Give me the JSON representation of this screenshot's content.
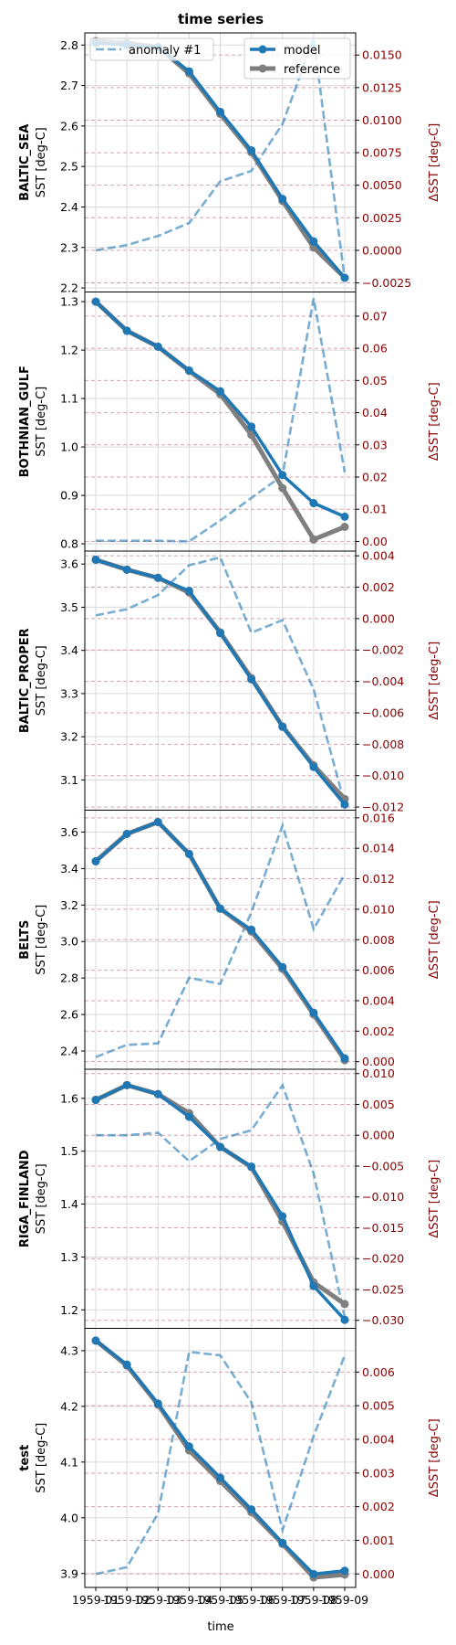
{
  "chart_data": {
    "type": "line",
    "title": "time series",
    "xlabel": "time",
    "x_tick_labels": [
      "1959-01",
      "1959-02",
      "1959-03",
      "1959-04",
      "1959-05",
      "1959-06",
      "1959-07",
      "1959-08",
      "1959-09"
    ],
    "legend": {
      "model": "model",
      "reference": "reference",
      "anomaly": "anomaly #1"
    },
    "colors": {
      "model": "#1f77b4",
      "reference": "#7f7f7f",
      "anomaly": "#1f77b4",
      "right_axis": "#8b0000"
    },
    "panels": [
      {
        "region": "BALTIC_SEA",
        "ylabel": "SST [deg-C]",
        "ylabel_right": "ΔSST [deg-C]",
        "ylim": [
          2.19,
          2.83
        ],
        "ylim_right": [
          -0.0032,
          0.0167
        ],
        "yticks": [
          "2.2",
          "2.3",
          "2.4",
          "2.5",
          "2.6",
          "2.7",
          "2.8"
        ],
        "yticks_right": [
          "−0.0025",
          "0.0000",
          "0.0025",
          "0.0050",
          "0.0075",
          "0.0100",
          "0.0125",
          "0.0150"
        ],
        "model": [
          2.805,
          2.8,
          2.795,
          2.735,
          2.635,
          2.54,
          2.42,
          2.315,
          2.225
        ],
        "reference": [
          2.81,
          2.805,
          2.795,
          2.73,
          2.63,
          2.535,
          2.415,
          2.3,
          2.225
        ],
        "anomaly": [
          0.0,
          0.0004,
          0.0011,
          0.0021,
          0.0053,
          0.0061,
          0.0097,
          0.0163,
          -0.0022
        ]
      },
      {
        "region": "BOTHNIAN_GULF",
        "ylabel": "SST [deg-C]",
        "ylabel_right": "ΔSST [deg-C]",
        "ylim": [
          0.785,
          1.32
        ],
        "ylim_right": [
          -0.003,
          0.0775
        ],
        "yticks": [
          "0.8",
          "0.9",
          "1.0",
          "1.1",
          "1.2",
          "1.3"
        ],
        "yticks_right": [
          "0.00",
          "0.01",
          "0.02",
          "0.03",
          "0.04",
          "0.05",
          "0.06",
          "0.07"
        ],
        "model": [
          1.3,
          1.24,
          1.207,
          1.158,
          1.115,
          1.042,
          0.942,
          0.884,
          0.856
        ],
        "reference": [
          1.3,
          1.24,
          1.207,
          1.157,
          1.109,
          1.025,
          0.915,
          0.809,
          0.835
        ],
        "anomaly": [
          0.0002,
          0.0002,
          0.0002,
          0.0,
          0.0065,
          0.0135,
          0.0205,
          0.0755,
          0.0215
        ]
      },
      {
        "region": "BALTIC_PROPER",
        "ylabel": "SST [deg-C]",
        "ylabel_right": "ΔSST [deg-C]",
        "ylim": [
          3.03,
          3.63
        ],
        "ylim_right": [
          -0.0122,
          0.0043
        ],
        "yticks": [
          "3.1",
          "3.2",
          "3.3",
          "3.4",
          "3.5",
          "3.6"
        ],
        "yticks_right": [
          "−0.012",
          "−0.010",
          "−0.008",
          "−0.006",
          "−0.004",
          "−0.002",
          "0.000",
          "0.002",
          "0.004"
        ],
        "model": [
          3.61,
          3.587,
          3.568,
          3.538,
          3.44,
          3.333,
          3.223,
          3.13,
          3.043
        ],
        "reference": [
          3.61,
          3.587,
          3.568,
          3.534,
          3.442,
          3.336,
          3.224,
          3.134,
          3.056
        ],
        "anomaly": [
          0.0002,
          0.0006,
          0.0015,
          0.0034,
          0.0039,
          -0.0009,
          -0.0001,
          -0.0045,
          -0.0118
        ]
      },
      {
        "region": "BELTS",
        "ylabel": "SST [deg-C]",
        "ylabel_right": "ΔSST [deg-C]",
        "ylim": [
          2.3,
          3.72
        ],
        "ylim_right": [
          -0.0005,
          0.0165
        ],
        "yticks": [
          "2.4",
          "2.6",
          "2.8",
          "3.0",
          "3.2",
          "3.4",
          "3.6"
        ],
        "yticks_right": [
          "0.000",
          "0.002",
          "0.004",
          "0.006",
          "0.008",
          "0.010",
          "0.012",
          "0.014",
          "0.016"
        ],
        "model": [
          3.44,
          3.59,
          3.655,
          3.48,
          3.18,
          3.065,
          2.86,
          2.61,
          2.36
        ],
        "reference": [
          3.44,
          3.59,
          3.655,
          3.48,
          3.18,
          3.055,
          2.85,
          2.6,
          2.35
        ],
        "anomaly": [
          0.0003,
          0.0011,
          0.0012,
          0.0055,
          0.0051,
          0.0098,
          0.0155,
          0.0087,
          0.0123
        ]
      },
      {
        "region": "RIGA_FINLAND",
        "ylabel": "SST [deg-C]",
        "ylabel_right": "ΔSST [deg-C]",
        "ylim": [
          1.165,
          1.655
        ],
        "ylim_right": [
          -0.0313,
          0.0107
        ],
        "yticks": [
          "1.2",
          "1.3",
          "1.4",
          "1.5",
          "1.6"
        ],
        "yticks_right": [
          "−0.030",
          "−0.025",
          "−0.020",
          "−0.015",
          "−0.010",
          "−0.005",
          "0.000",
          "0.005",
          "0.010"
        ],
        "model": [
          1.597,
          1.625,
          1.608,
          1.565,
          1.508,
          1.471,
          1.377,
          1.245,
          1.181
        ],
        "reference": [
          1.597,
          1.625,
          1.608,
          1.572,
          1.508,
          1.47,
          1.367,
          1.252,
          1.211
        ],
        "anomaly": [
          0.0,
          0.0,
          0.0004,
          -0.0042,
          -0.0006,
          0.0008,
          0.0081,
          -0.0062,
          -0.0295
        ]
      },
      {
        "region": "test",
        "ylabel": "SST [deg-C]",
        "ylabel_right": "ΔSST [deg-C]",
        "ylim": [
          3.875,
          4.34
        ],
        "ylim_right": [
          -0.0004,
          0.0073
        ],
        "yticks": [
          "3.9",
          "4.0",
          "4.1",
          "4.2",
          "4.3"
        ],
        "yticks_right": [
          "0.000",
          "0.001",
          "0.002",
          "0.003",
          "0.004",
          "0.005",
          "0.006"
        ],
        "model": [
          4.318,
          4.275,
          4.205,
          4.128,
          4.072,
          4.015,
          3.955,
          3.899,
          3.905
        ],
        "reference": [
          4.318,
          4.273,
          4.203,
          4.121,
          4.066,
          4.01,
          3.953,
          3.893,
          3.898
        ],
        "anomaly": [
          0.0,
          0.0002,
          0.0018,
          0.0066,
          0.0065,
          0.0051,
          0.0013,
          0.0041,
          0.0065
        ]
      }
    ]
  }
}
